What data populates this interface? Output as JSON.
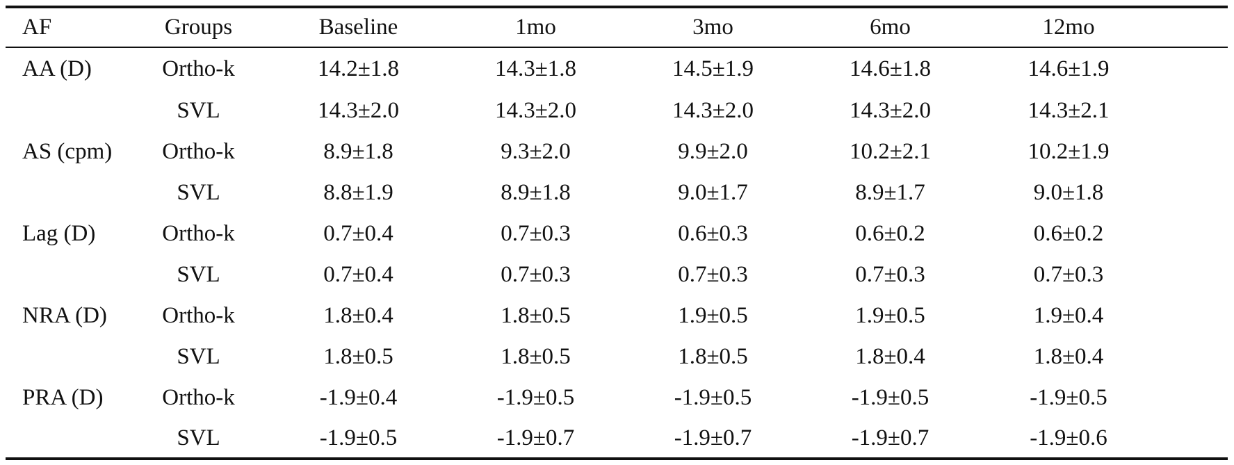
{
  "table": {
    "headers": [
      "AF",
      "Groups",
      "Baseline",
      "1mo",
      "3mo",
      "6mo",
      "12mo"
    ],
    "rows": [
      {
        "af": "AA (D)",
        "group": "Ortho-k",
        "values": [
          "14.2±1.8",
          "14.3±1.8",
          "14.5±1.9",
          "14.6±1.8",
          "14.6±1.9"
        ]
      },
      {
        "af": "",
        "group": "SVL",
        "values": [
          "14.3±2.0",
          "14.3±2.0",
          "14.3±2.0",
          "14.3±2.0",
          "14.3±2.1"
        ]
      },
      {
        "af": "AS (cpm)",
        "group": "Ortho-k",
        "values": [
          "8.9±1.8",
          "9.3±2.0",
          "9.9±2.0",
          "10.2±2.1",
          "10.2±1.9"
        ]
      },
      {
        "af": "",
        "group": "SVL",
        "values": [
          "8.8±1.9",
          "8.9±1.8",
          "9.0±1.7",
          "8.9±1.7",
          "9.0±1.8"
        ]
      },
      {
        "af": "Lag (D)",
        "group": "Ortho-k",
        "values": [
          "0.7±0.4",
          "0.7±0.3",
          "0.6±0.3",
          "0.6±0.2",
          "0.6±0.2"
        ]
      },
      {
        "af": "",
        "group": "SVL",
        "values": [
          "0.7±0.4",
          "0.7±0.3",
          "0.7±0.3",
          "0.7±0.3",
          "0.7±0.3"
        ]
      },
      {
        "af": "NRA (D)",
        "group": "Ortho-k",
        "values": [
          "1.8±0.4",
          "1.8±0.5",
          "1.9±0.5",
          "1.9±0.5",
          "1.9±0.4"
        ]
      },
      {
        "af": "",
        "group": "SVL",
        "values": [
          "1.8±0.5",
          "1.8±0.5",
          "1.8±0.5",
          "1.8±0.4",
          "1.8±0.4"
        ]
      },
      {
        "af": "PRA (D)",
        "group": "Ortho-k",
        "values": [
          "-1.9±0.4",
          "-1.9±0.5",
          "-1.9±0.5",
          "-1.9±0.5",
          "-1.9±0.5"
        ]
      },
      {
        "af": "",
        "group": "SVL",
        "values": [
          "-1.9±0.5",
          "-1.9±0.7",
          "-1.9±0.7",
          "-1.9±0.7",
          "-1.9±0.6"
        ]
      }
    ]
  }
}
